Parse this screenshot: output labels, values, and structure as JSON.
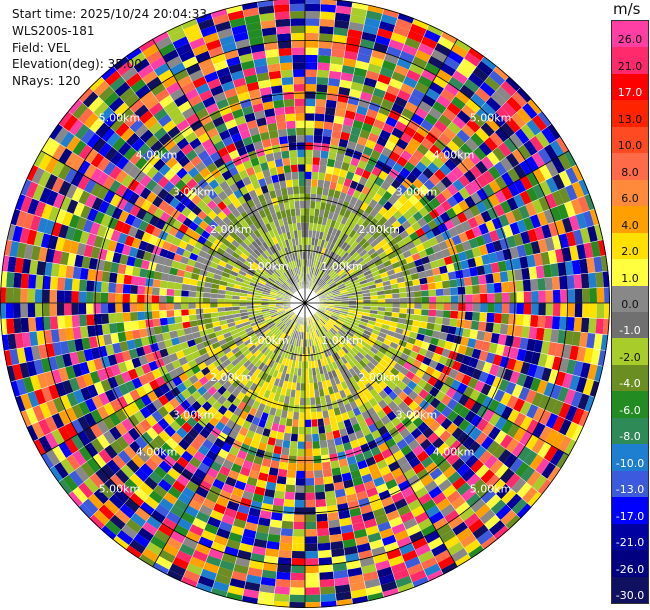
{
  "info": {
    "start_time": "Start time: 2025/10/24 20:04:33",
    "device": "WLS200s-181",
    "field": "Field: VEL",
    "elevation": "Elevation(deg): 35.00",
    "nrays": "NRays: 120"
  },
  "colorbar": {
    "unit": "m/s",
    "labels": [
      "26.0",
      "21.0",
      "17.0",
      "13.0",
      "10.0",
      "8.0",
      "6.0",
      "4.0",
      "2.0",
      "1.0",
      "0.0",
      "-1.0",
      "-2.0",
      "-4.0",
      "-6.0",
      "-8.0",
      "-10.0",
      "-13.0",
      "-17.0",
      "-21.0",
      "-26.0",
      "-30.0"
    ],
    "colors": [
      "#ff3fa4",
      "#ff2a6c",
      "#ff0000",
      "#ff2400",
      "#ff4a22",
      "#ff6a48",
      "#ff8a3c",
      "#ffa000",
      "#ffe000",
      "#ffff40",
      "#888888",
      "#707070",
      "#a8cc2a",
      "#6b8e23",
      "#228b22",
      "#2e8b57",
      "#1e7fd0",
      "#3c5adc",
      "#0000ff",
      "#0000a0",
      "#000080",
      "#101060"
    ]
  },
  "chart_data": {
    "type": "heatmap",
    "projection": "polar",
    "field": "VEL",
    "unit": "m/s",
    "nrays": 120,
    "elevation_deg": 35.0,
    "range_rings": [
      "1.00km",
      "2.00km",
      "3.00km",
      "4.00km",
      "5.00km"
    ],
    "color_scale": [
      -30.0,
      -26.0,
      -21.0,
      -17.0,
      -13.0,
      -10.0,
      -8.0,
      -6.0,
      -4.0,
      -2.0,
      -1.0,
      0.0,
      1.0,
      2.0,
      4.0,
      6.0,
      8.0,
      10.0,
      13.0,
      17.0,
      21.0,
      26.0
    ]
  }
}
